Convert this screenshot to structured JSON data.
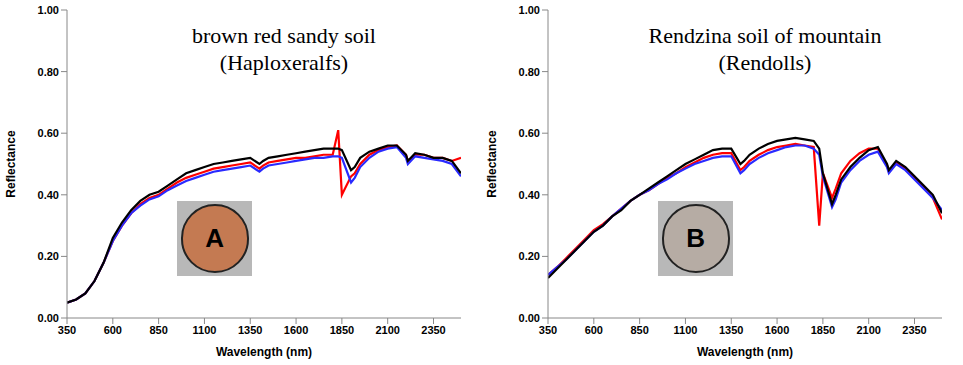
{
  "chart_data": [
    {
      "type": "line",
      "title": "brown red sandy soil",
      "subtitle": "(Haploxeralfs)",
      "annotation": "A",
      "x_label": "Wavelength (nm)",
      "y_label": "Reflectance",
      "x": [
        350,
        400,
        450,
        500,
        550,
        600,
        650,
        700,
        750,
        800,
        850,
        900,
        950,
        1000,
        1050,
        1100,
        1150,
        1200,
        1250,
        1300,
        1350,
        1400,
        1420,
        1450,
        1500,
        1550,
        1600,
        1650,
        1700,
        1750,
        1800,
        1830,
        1850,
        1900,
        1920,
        1950,
        2000,
        2050,
        2100,
        2150,
        2200,
        2210,
        2250,
        2300,
        2350,
        2400,
        2450,
        2500
      ],
      "series": [
        {
          "color": "#ff0000",
          "values": [
            0.05,
            0.06,
            0.08,
            0.12,
            0.18,
            0.25,
            0.3,
            0.34,
            0.37,
            0.39,
            0.4,
            0.42,
            0.44,
            0.455,
            0.465,
            0.475,
            0.485,
            0.49,
            0.495,
            0.5,
            0.505,
            0.485,
            0.495,
            0.505,
            0.51,
            0.515,
            0.52,
            0.52,
            0.525,
            0.53,
            0.53,
            0.61,
            0.4,
            0.46,
            0.47,
            0.5,
            0.53,
            0.545,
            0.555,
            0.56,
            0.53,
            0.51,
            0.53,
            0.53,
            0.52,
            0.52,
            0.51,
            0.52
          ]
        },
        {
          "color": "#2a2aff",
          "values": [
            0.05,
            0.06,
            0.08,
            0.12,
            0.18,
            0.25,
            0.3,
            0.34,
            0.365,
            0.385,
            0.395,
            0.415,
            0.43,
            0.445,
            0.455,
            0.465,
            0.475,
            0.48,
            0.485,
            0.49,
            0.495,
            0.475,
            0.485,
            0.495,
            0.5,
            0.505,
            0.51,
            0.515,
            0.52,
            0.52,
            0.525,
            0.525,
            0.52,
            0.44,
            0.455,
            0.49,
            0.52,
            0.54,
            0.55,
            0.555,
            0.52,
            0.5,
            0.525,
            0.52,
            0.515,
            0.51,
            0.5,
            0.46
          ]
        },
        {
          "color": "#000000",
          "values": [
            0.05,
            0.06,
            0.08,
            0.12,
            0.18,
            0.26,
            0.31,
            0.35,
            0.38,
            0.4,
            0.41,
            0.43,
            0.45,
            0.47,
            0.48,
            0.49,
            0.5,
            0.505,
            0.51,
            0.515,
            0.52,
            0.5,
            0.51,
            0.52,
            0.525,
            0.53,
            0.535,
            0.54,
            0.545,
            0.55,
            0.55,
            0.55,
            0.545,
            0.48,
            0.49,
            0.52,
            0.54,
            0.55,
            0.56,
            0.56,
            0.53,
            0.51,
            0.535,
            0.53,
            0.52,
            0.52,
            0.51,
            0.47
          ]
        }
      ],
      "xlim": [
        350,
        2500
      ],
      "xticks": [
        350,
        600,
        850,
        1100,
        1350,
        1600,
        1850,
        2100,
        2350
      ],
      "ylim": [
        0,
        1
      ],
      "yticks": [
        {
          "value": 0,
          "label": "0.00"
        },
        {
          "value": 0.2,
          "label": "0.20"
        },
        {
          "value": 0.4,
          "label": "0.40"
        },
        {
          "value": 0.6,
          "label": "0.60"
        },
        {
          "value": 0.8,
          "label": "0.80"
        },
        {
          "value": 1,
          "label": "1.00"
        }
      ],
      "grid": false
    },
    {
      "type": "line",
      "title": "Rendzina soil of mountain",
      "subtitle": "(Rendolls)",
      "annotation": "B",
      "x_label": "Wavelength (nm)",
      "y_label": "Reflectance",
      "x": [
        350,
        400,
        450,
        500,
        550,
        600,
        650,
        700,
        750,
        800,
        850,
        900,
        950,
        1000,
        1050,
        1100,
        1150,
        1200,
        1250,
        1300,
        1350,
        1400,
        1420,
        1450,
        1500,
        1550,
        1600,
        1650,
        1700,
        1750,
        1800,
        1830,
        1850,
        1900,
        1920,
        1950,
        2000,
        2050,
        2100,
        2150,
        2200,
        2210,
        2250,
        2300,
        2350,
        2400,
        2450,
        2500
      ],
      "series": [
        {
          "color": "#ff0000",
          "values": [
            0.14,
            0.165,
            0.195,
            0.225,
            0.255,
            0.285,
            0.305,
            0.33,
            0.355,
            0.38,
            0.4,
            0.415,
            0.435,
            0.455,
            0.47,
            0.49,
            0.505,
            0.52,
            0.53,
            0.535,
            0.535,
            0.48,
            0.49,
            0.51,
            0.53,
            0.545,
            0.555,
            0.56,
            0.565,
            0.56,
            0.555,
            0.3,
            0.47,
            0.39,
            0.42,
            0.47,
            0.51,
            0.535,
            0.55,
            0.55,
            0.495,
            0.475,
            0.505,
            0.485,
            0.455,
            0.425,
            0.39,
            0.32
          ]
        },
        {
          "color": "#2a2aff",
          "values": [
            0.14,
            0.165,
            0.19,
            0.22,
            0.25,
            0.28,
            0.3,
            0.33,
            0.355,
            0.38,
            0.4,
            0.415,
            0.435,
            0.45,
            0.47,
            0.485,
            0.5,
            0.51,
            0.52,
            0.525,
            0.525,
            0.47,
            0.48,
            0.5,
            0.52,
            0.535,
            0.545,
            0.555,
            0.56,
            0.56,
            0.55,
            0.53,
            0.46,
            0.36,
            0.385,
            0.44,
            0.48,
            0.51,
            0.53,
            0.54,
            0.49,
            0.47,
            0.5,
            0.48,
            0.45,
            0.42,
            0.39,
            0.35
          ]
        },
        {
          "color": "#000000",
          "values": [
            0.13,
            0.16,
            0.19,
            0.22,
            0.25,
            0.28,
            0.3,
            0.33,
            0.35,
            0.38,
            0.4,
            0.42,
            0.44,
            0.46,
            0.48,
            0.5,
            0.515,
            0.53,
            0.545,
            0.55,
            0.55,
            0.5,
            0.51,
            0.53,
            0.55,
            0.565,
            0.575,
            0.58,
            0.585,
            0.58,
            0.575,
            0.55,
            0.47,
            0.37,
            0.4,
            0.45,
            0.49,
            0.52,
            0.545,
            0.555,
            0.5,
            0.48,
            0.51,
            0.49,
            0.46,
            0.43,
            0.4,
            0.34
          ]
        }
      ],
      "xlim": [
        350,
        2500
      ],
      "xticks": [
        350,
        600,
        850,
        1100,
        1350,
        1600,
        1850,
        2100,
        2350
      ],
      "ylim": [
        0,
        1
      ],
      "yticks": [
        {
          "value": 0,
          "label": "0.00"
        },
        {
          "value": 0.2,
          "label": "0.20"
        },
        {
          "value": 0.4,
          "label": "0.40"
        },
        {
          "value": 0.6,
          "label": "0.60"
        },
        {
          "value": 0.8,
          "label": "0.80"
        },
        {
          "value": 1,
          "label": "1.00"
        }
      ],
      "grid": false
    }
  ]
}
